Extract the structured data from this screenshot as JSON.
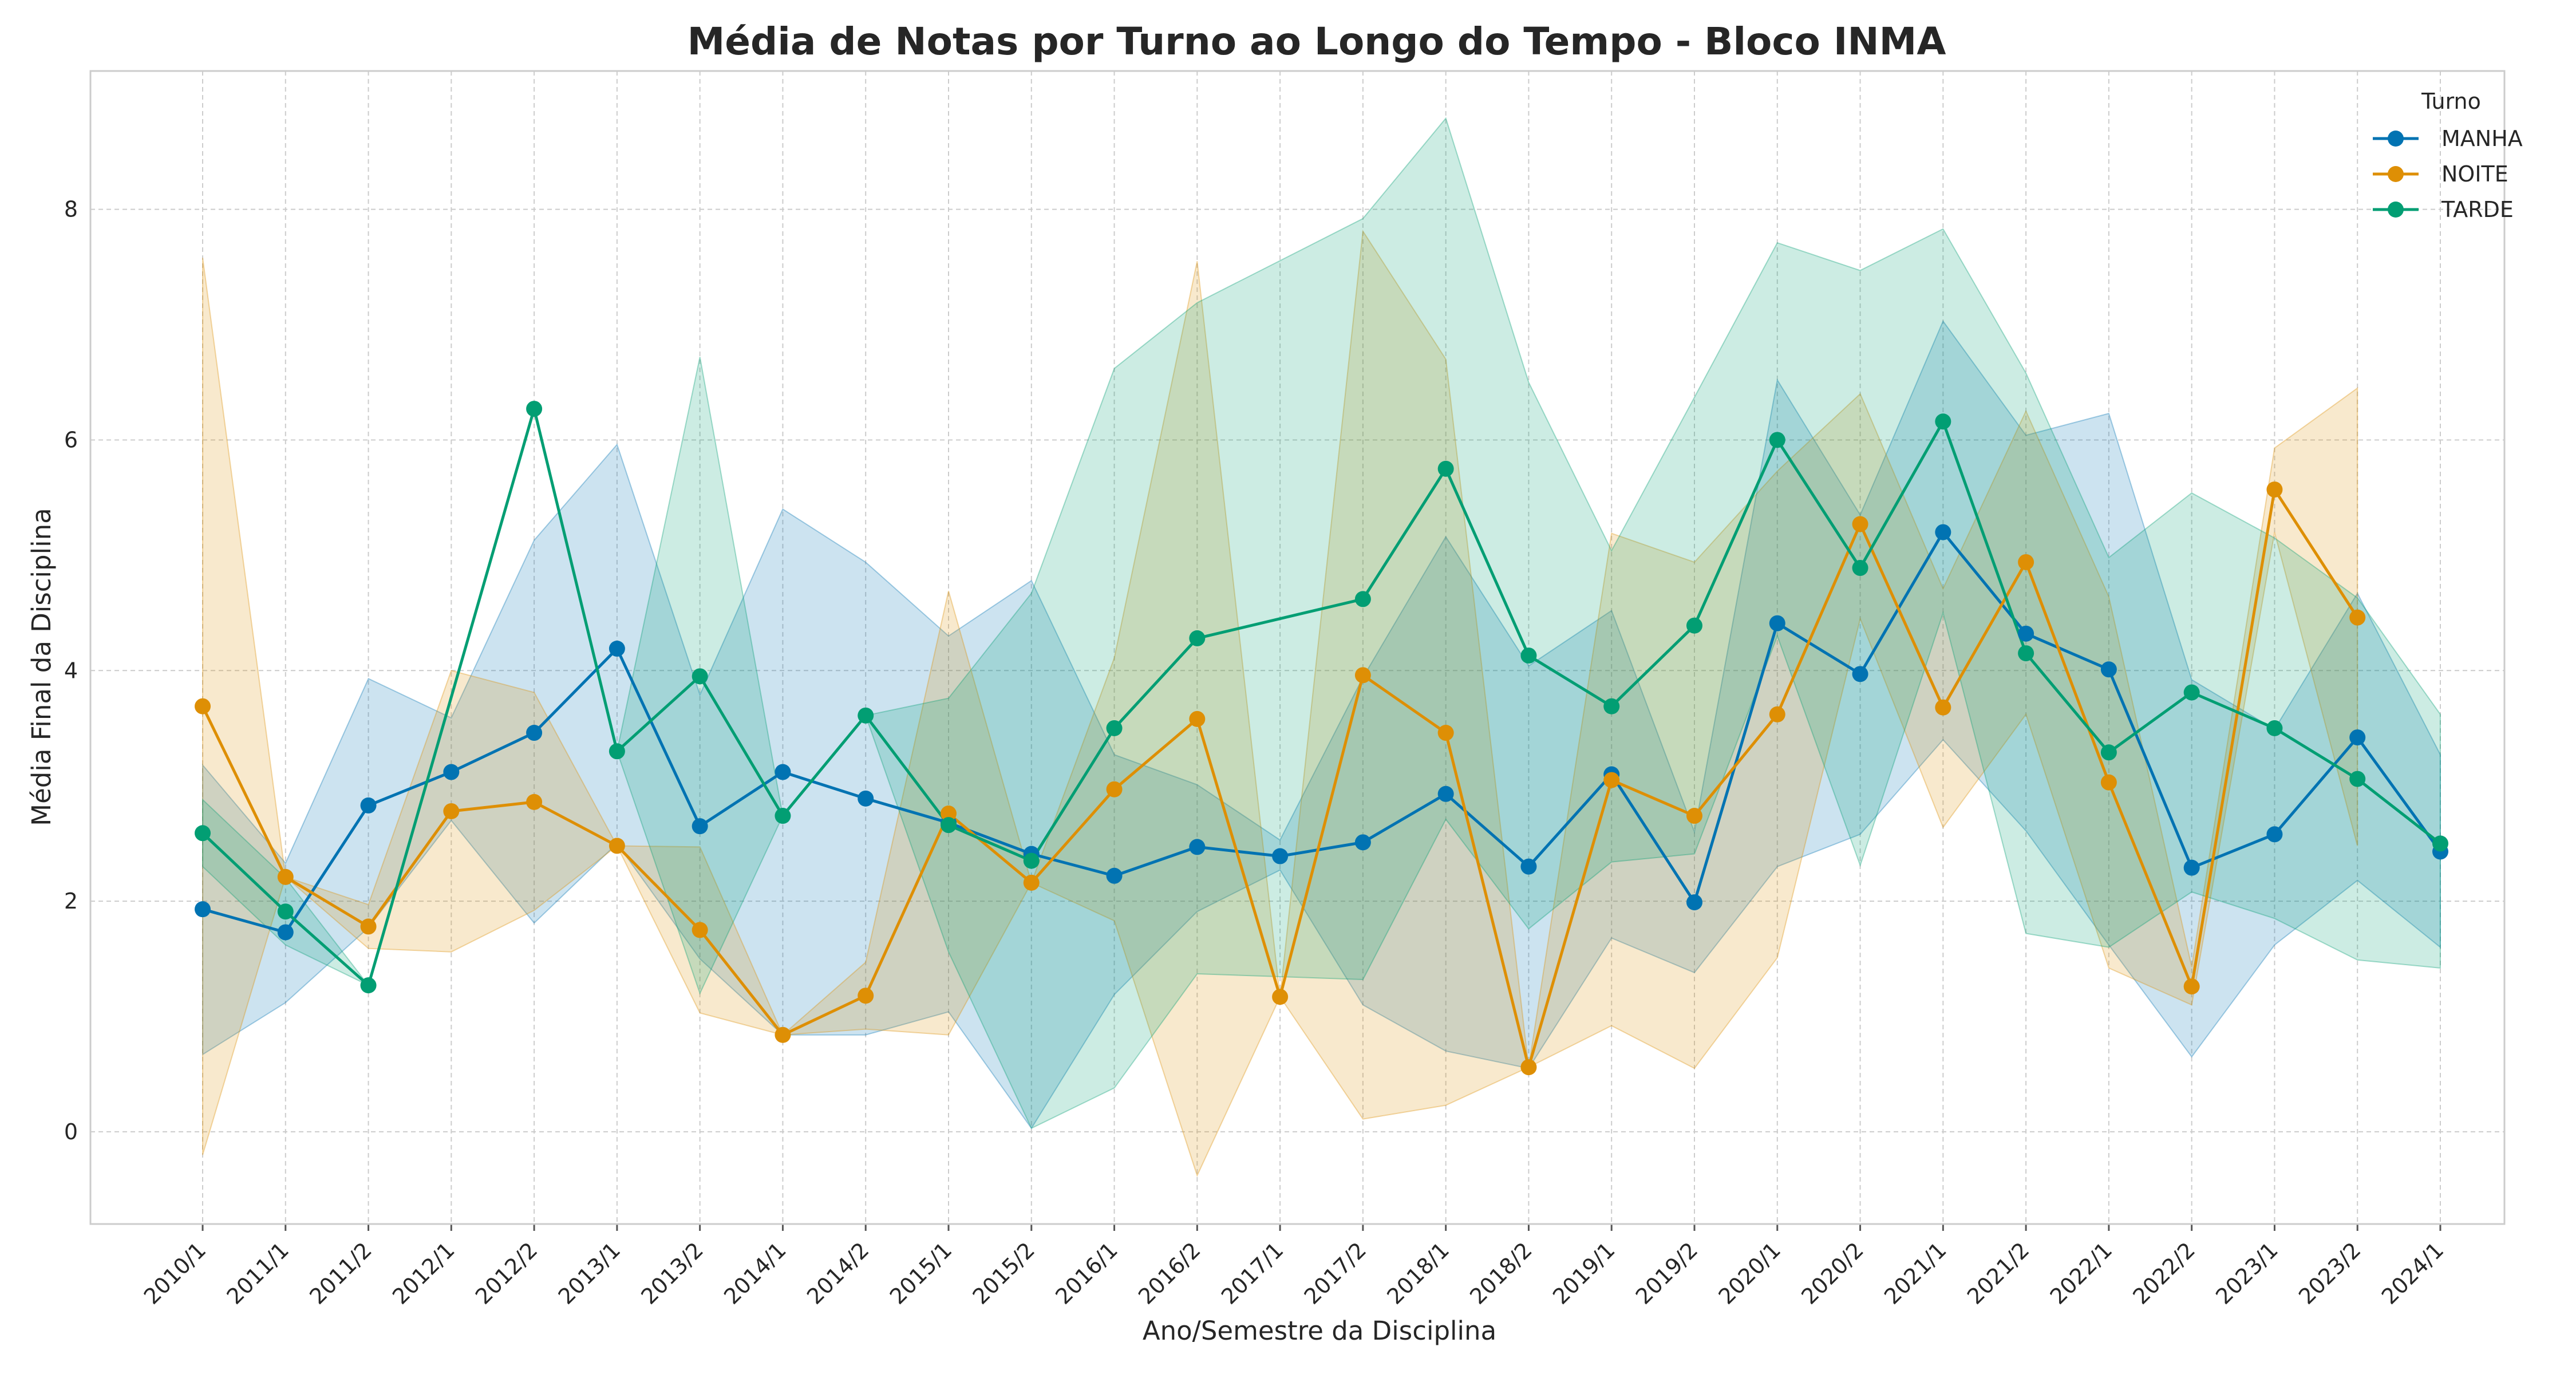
{
  "chart_data": {
    "type": "line",
    "title": "Média de Notas por Turno ao Longo do Tempo - Bloco INMA",
    "xlabel": "Ano/Semestre da Disciplina",
    "ylabel": "Média Final da Disciplina",
    "ylim": [
      -0.8,
      9.2
    ],
    "yticks": [
      0,
      2,
      4,
      6,
      8
    ],
    "grid": true,
    "legend_title": "Turno",
    "legend_position": "top-right",
    "categories": [
      "2010/1",
      "2011/1",
      "2011/2",
      "2012/1",
      "2012/2",
      "2013/1",
      "2013/2",
      "2014/1",
      "2014/2",
      "2015/1",
      "2015/2",
      "2016/1",
      "2016/2",
      "2017/1",
      "2017/2",
      "2018/1",
      "2018/2",
      "2019/1",
      "2019/2",
      "2020/1",
      "2020/2",
      "2021/1",
      "2021/2",
      "2022/1",
      "2022/2",
      "2023/1",
      "2023/2",
      "2024/1"
    ],
    "series": [
      {
        "name": "MANHA",
        "color": "#0173b2",
        "values": [
          1.93,
          1.73,
          2.83,
          3.12,
          3.46,
          4.19,
          2.65,
          3.12,
          2.89,
          2.68,
          2.41,
          2.22,
          2.47,
          2.39,
          2.51,
          2.93,
          2.3,
          3.1,
          1.99,
          4.41,
          3.97,
          5.2,
          4.32,
          4.01,
          2.29,
          2.58,
          3.42,
          2.43
        ],
        "lower": [
          0.67,
          1.12,
          1.77,
          2.7,
          1.81,
          2.5,
          1.5,
          0.84,
          0.84,
          1.04,
          0.03,
          1.19,
          1.91,
          2.27,
          1.1,
          0.7,
          0.55,
          1.68,
          1.38,
          2.3,
          2.58,
          3.4,
          2.61,
          1.62,
          0.65,
          1.62,
          2.18,
          1.6
        ],
        "upper": [
          3.18,
          2.33,
          3.93,
          3.59,
          5.13,
          5.96,
          3.79,
          5.4,
          4.94,
          4.3,
          4.78,
          3.27,
          3.01,
          2.53,
          3.94,
          5.16,
          4.04,
          4.52,
          2.6,
          6.52,
          5.35,
          7.03,
          6.04,
          6.23,
          3.92,
          3.49,
          4.67,
          3.27
        ]
      },
      {
        "name": "NOITE",
        "color": "#de8f05",
        "values": [
          3.69,
          2.21,
          1.78,
          2.78,
          2.86,
          2.48,
          1.75,
          0.84,
          1.18,
          2.76,
          2.16,
          2.97,
          3.58,
          1.17,
          3.96,
          3.46,
          0.56,
          3.05,
          2.74,
          3.62,
          5.27,
          3.68,
          4.94,
          3.03,
          1.26,
          5.57,
          4.46,
          null
        ],
        "lower": [
          -0.2,
          2.21,
          1.59,
          1.56,
          1.92,
          2.48,
          1.03,
          0.84,
          0.89,
          0.84,
          2.16,
          1.83,
          -0.38,
          1.17,
          0.11,
          0.23,
          0.56,
          0.92,
          0.55,
          1.51,
          4.45,
          2.64,
          3.62,
          1.42,
          1.1,
          5.2,
          2.48,
          null
        ],
        "upper": [
          7.58,
          2.21,
          1.97,
          4.0,
          3.81,
          2.48,
          2.47,
          0.84,
          1.47,
          4.69,
          2.16,
          4.11,
          7.55,
          1.17,
          7.81,
          6.7,
          0.56,
          5.19,
          4.94,
          5.73,
          6.4,
          4.71,
          6.25,
          4.64,
          1.43,
          5.93,
          6.45,
          null
        ]
      },
      {
        "name": "TARDE",
        "color": "#029e73",
        "values": [
          2.59,
          1.91,
          1.27,
          null,
          6.27,
          3.3,
          3.95,
          2.74,
          3.61,
          2.66,
          2.35,
          3.5,
          4.28,
          null,
          4.62,
          5.75,
          4.13,
          3.69,
          4.39,
          6.0,
          4.89,
          6.16,
          4.15,
          3.29,
          3.81,
          3.5,
          3.06,
          2.5
        ],
        "lower": [
          2.3,
          1.62,
          1.27,
          null,
          6.27,
          3.3,
          1.2,
          2.74,
          3.61,
          1.56,
          0.03,
          0.38,
          1.37,
          null,
          1.32,
          2.71,
          1.76,
          2.34,
          2.41,
          4.3,
          2.31,
          4.5,
          1.72,
          1.6,
          2.08,
          1.85,
          1.49,
          1.42
        ],
        "upper": [
          2.88,
          2.2,
          1.27,
          null,
          6.27,
          3.3,
          6.72,
          2.74,
          3.61,
          3.76,
          4.67,
          6.62,
          7.19,
          null,
          7.92,
          8.79,
          6.5,
          5.04,
          6.37,
          7.71,
          7.47,
          7.83,
          6.58,
          4.98,
          5.54,
          5.15,
          4.63,
          3.62
        ]
      }
    ]
  }
}
